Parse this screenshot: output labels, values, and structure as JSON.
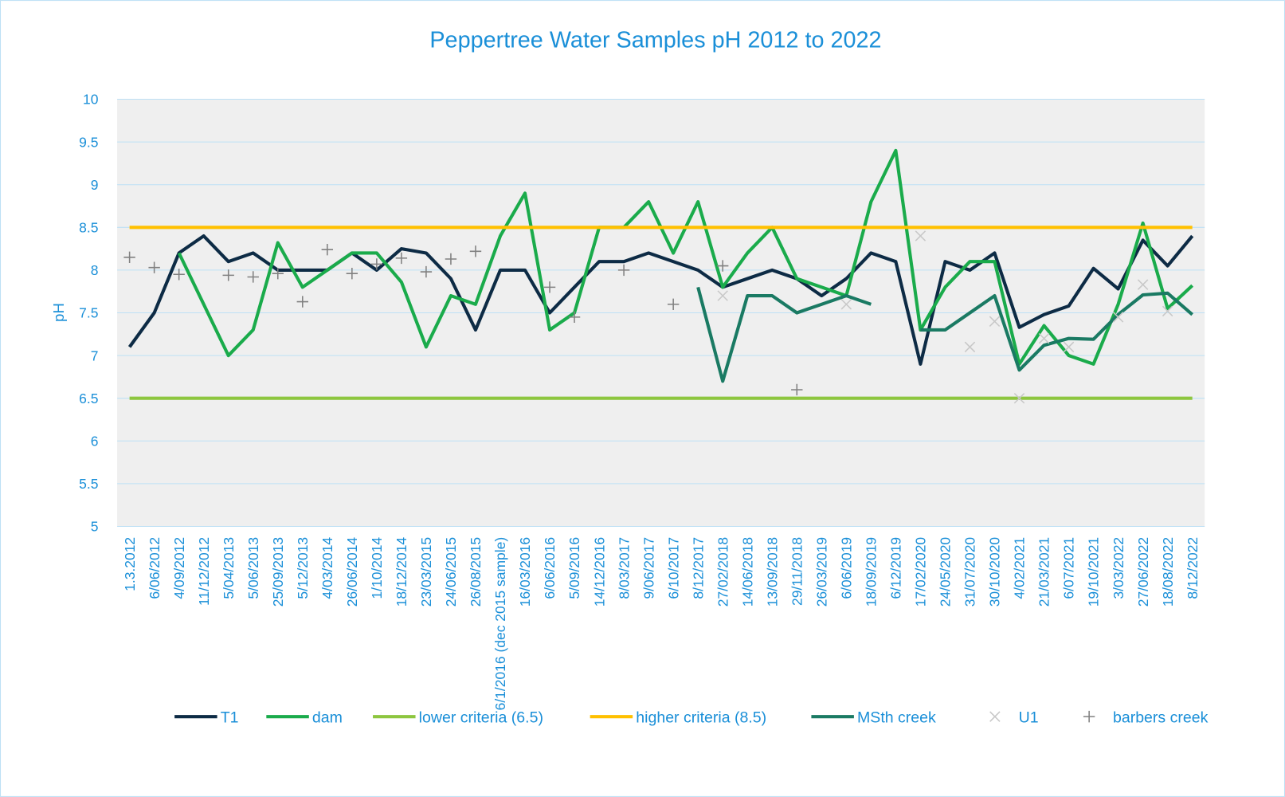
{
  "chart_data": {
    "type": "line",
    "title": "Peppertree Water Samples pH 2012 to 2022",
    "y_label": "pH",
    "categories": [
      "1.3.2012",
      "6/06/2012",
      "4/09/2012",
      "11/12/2012",
      "5/04/2013",
      "5/06/2013",
      "25/09/2013",
      "5/12/2013",
      "4/03/2014",
      "26/06/2014",
      "1/10/2014",
      "18/12/2014",
      "23/03/2015",
      "24/06/2015",
      "26/08/2015",
      "6/1/2016 (dec 2015 sample)",
      "16/03/2016",
      "6/06/2016",
      "5/09/2016",
      "14/12/2016",
      "8/03/2017",
      "9/06/2017",
      "6/10/2017",
      "8/12/2017",
      "27/02/2018",
      "14/06/2018",
      "13/09/2018",
      "29/11/2018",
      "26/03/2019",
      "6/06/2019",
      "18/09/2019",
      "6/12/2019",
      "17/02/2020",
      "24/05/2020",
      "31/07/2020",
      "30/10/2020",
      "4/02/2021",
      "21/03/2021",
      "6/07/2021",
      "19/10/2021",
      "3/03/2022",
      "27/06/2022",
      "18/08/2022",
      "8/12/2022"
    ],
    "series": [
      {
        "name": "T1",
        "color": "#0d2b45",
        "values": [
          7.1,
          7.5,
          8.2,
          8.4,
          8.1,
          8.2,
          8.0,
          8.0,
          8.0,
          8.2,
          8.0,
          8.25,
          8.2,
          7.9,
          7.3,
          8.0,
          8.0,
          7.5,
          7.8,
          8.1,
          8.1,
          8.2,
          8.1,
          8.0,
          7.8,
          7.9,
          8.0,
          7.9,
          7.7,
          7.9,
          8.2,
          8.1,
          6.9,
          8.1,
          8.0,
          8.2,
          7.33,
          7.48,
          7.58,
          8.02,
          7.78,
          8.35,
          8.05,
          8.4
        ]
      },
      {
        "name": "dam",
        "color": "#1aab4b",
        "values": [
          null,
          null,
          8.2,
          7.6,
          7.0,
          7.3,
          8.32,
          7.8,
          8.0,
          8.2,
          8.2,
          7.86,
          7.1,
          7.7,
          7.6,
          8.4,
          8.9,
          7.3,
          7.5,
          8.5,
          8.5,
          8.8,
          8.2,
          8.8,
          7.8,
          8.2,
          8.5,
          7.9,
          7.8,
          7.7,
          8.8,
          9.4,
          7.3,
          7.8,
          8.1,
          8.1,
          6.9,
          7.35,
          7.0,
          6.9,
          7.6,
          8.55,
          7.55,
          7.82
        ]
      },
      {
        "name": "lower criteria (6.5)",
        "color": "#8dc63f",
        "values": [
          6.5,
          6.5,
          6.5,
          6.5,
          6.5,
          6.5,
          6.5,
          6.5,
          6.5,
          6.5,
          6.5,
          6.5,
          6.5,
          6.5,
          6.5,
          6.5,
          6.5,
          6.5,
          6.5,
          6.5,
          6.5,
          6.5,
          6.5,
          6.5,
          6.5,
          6.5,
          6.5,
          6.5,
          6.5,
          6.5,
          6.5,
          6.5,
          6.5,
          6.5,
          6.5,
          6.5,
          6.5,
          6.5,
          6.5,
          6.5,
          6.5,
          6.5,
          6.5,
          6.5
        ]
      },
      {
        "name": "higher criteria (8.5)",
        "color": "#ffc000",
        "values": [
          8.5,
          8.5,
          8.5,
          8.5,
          8.5,
          8.5,
          8.5,
          8.5,
          8.5,
          8.5,
          8.5,
          8.5,
          8.5,
          8.5,
          8.5,
          8.5,
          8.5,
          8.5,
          8.5,
          8.5,
          8.5,
          8.5,
          8.5,
          8.5,
          8.5,
          8.5,
          8.5,
          8.5,
          8.5,
          8.5,
          8.5,
          8.5,
          8.5,
          8.5,
          8.5,
          8.5,
          8.5,
          8.5,
          8.5,
          8.5,
          8.5,
          8.5,
          8.5,
          8.5
        ]
      },
      {
        "name": "MSth creek",
        "color": "#1a7a63",
        "values": [
          null,
          null,
          null,
          null,
          null,
          null,
          null,
          null,
          null,
          null,
          null,
          null,
          null,
          null,
          null,
          null,
          null,
          null,
          null,
          null,
          null,
          null,
          null,
          7.8,
          6.7,
          7.7,
          7.7,
          7.5,
          7.6,
          7.7,
          7.6,
          null,
          7.3,
          7.3,
          7.5,
          7.7,
          6.83,
          7.12,
          7.2,
          7.19,
          7.48,
          7.71,
          7.73,
          7.48
        ]
      },
      {
        "name": "U1",
        "color": "#c8c8c8",
        "marker": "x",
        "values": [
          null,
          null,
          null,
          null,
          null,
          null,
          null,
          null,
          null,
          null,
          null,
          null,
          null,
          null,
          null,
          null,
          null,
          null,
          null,
          null,
          null,
          null,
          null,
          null,
          7.7,
          null,
          null,
          null,
          null,
          7.6,
          null,
          null,
          8.4,
          null,
          7.1,
          7.4,
          6.5,
          7.2,
          7.1,
          null,
          7.45,
          7.83,
          7.52,
          null
        ]
      },
      {
        "name": "barbers creek",
        "color": "#808080",
        "marker": "+",
        "values": [
          8.15,
          8.03,
          7.95,
          null,
          7.94,
          7.92,
          7.96,
          7.63,
          8.24,
          7.96,
          8.07,
          8.14,
          7.98,
          8.13,
          8.22,
          null,
          null,
          7.8,
          7.45,
          null,
          8.0,
          null,
          7.6,
          null,
          8.05,
          null,
          null,
          6.6,
          null,
          null,
          null,
          null,
          null,
          null,
          null,
          null,
          null,
          null,
          null,
          null,
          null,
          null,
          null,
          null
        ]
      }
    ],
    "ylim": [
      5,
      10
    ],
    "yticks": [
      5,
      5.5,
      6,
      6.5,
      7,
      7.5,
      8,
      8.5,
      9,
      9.5,
      10
    ],
    "grid": true,
    "legend": "bottom"
  }
}
